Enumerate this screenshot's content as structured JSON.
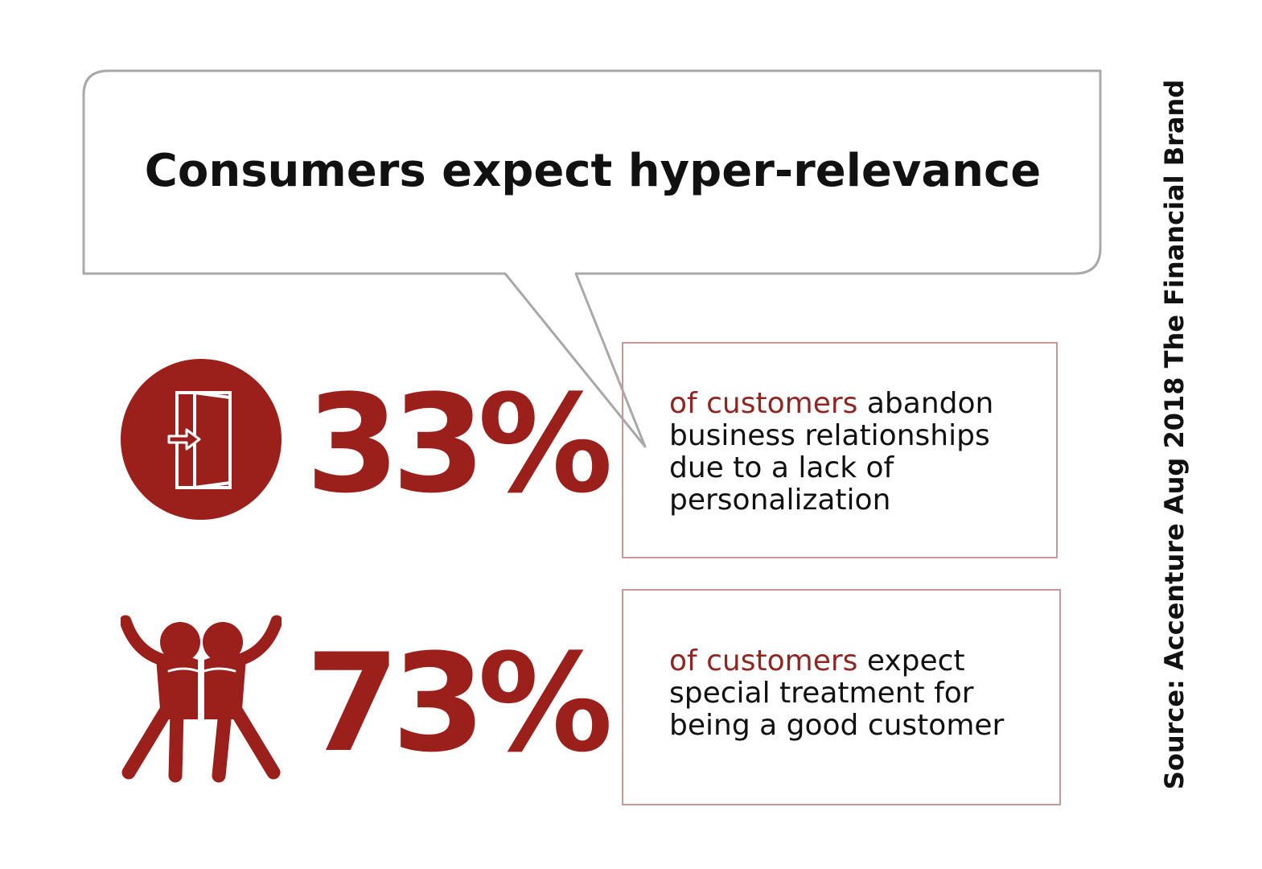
{
  "headline": "Consumers expect hyper-relevance",
  "stats": [
    {
      "icon": "door-exit-icon",
      "percent": "33%",
      "highlight": "of customers",
      "line1_rest": " abandon",
      "line2": "business relationships",
      "line3": "due to a lack of",
      "line4": "personalization"
    },
    {
      "icon": "cheering-people-icon",
      "percent": "73%",
      "highlight": "of customers",
      "line1_rest": " expect",
      "line2": "special treatment for",
      "line3": "being a good customer"
    }
  ],
  "source": "Source: Accenture Aug 2018 The Financial Brand",
  "colors": {
    "accent": "#9b1f1a",
    "highlight_text": "#8f2622",
    "box_border": "#c8999b",
    "bubble_border": "#a8a8a8"
  }
}
